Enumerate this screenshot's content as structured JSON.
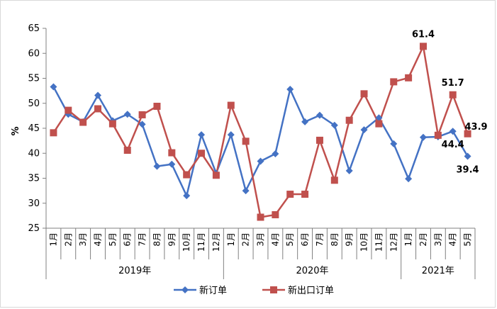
{
  "chart_data": {
    "type": "line",
    "ylabel": "%",
    "ylim": [
      25,
      65
    ],
    "yticks": [
      25,
      30,
      35,
      40,
      45,
      50,
      55,
      60,
      65
    ],
    "months": [
      "1月",
      "2月",
      "3月",
      "4月",
      "5月",
      "6月",
      "7月",
      "8月",
      "9月",
      "10月",
      "11月",
      "12月",
      "1月",
      "2月",
      "3月",
      "4月",
      "5月",
      "6月",
      "7月",
      "8月",
      "9月",
      "10月",
      "11月",
      "12月",
      "1月",
      "2月",
      "3月",
      "4月",
      "5月"
    ],
    "years": [
      {
        "label": "2019年",
        "count": 12
      },
      {
        "label": "2020年",
        "count": 12
      },
      {
        "label": "2021年",
        "count": 5
      }
    ],
    "series": [
      {
        "name": "新订单",
        "color": "#4472c4",
        "marker": "diamond",
        "values": [
          53.3,
          47.8,
          46.3,
          51.6,
          46.5,
          47.8,
          45.8,
          37.4,
          37.8,
          31.5,
          43.7,
          36.0,
          43.7,
          32.5,
          38.4,
          39.9,
          52.8,
          46.3,
          47.6,
          45.6,
          36.5,
          44.7,
          47.1,
          41.9,
          34.9,
          43.2,
          43.3,
          44.4,
          39.4
        ]
      },
      {
        "name": "新出口订单",
        "color": "#c0504d",
        "marker": "square",
        "values": [
          44.1,
          48.6,
          46.2,
          48.9,
          45.9,
          40.6,
          47.7,
          49.4,
          40.1,
          35.7,
          40.0,
          35.6,
          49.6,
          42.4,
          27.2,
          27.7,
          31.8,
          31.8,
          42.6,
          34.6,
          46.6,
          51.9,
          45.9,
          54.3,
          55.1,
          61.4,
          43.6,
          51.7,
          43.9
        ]
      }
    ],
    "annotations": [
      {
        "text": "61.4",
        "series": 1,
        "index": 25,
        "pos": "above"
      },
      {
        "text": "51.7",
        "series": 1,
        "index": 27,
        "pos": "above"
      },
      {
        "text": "43.9",
        "series": 1,
        "index": 28,
        "pos": "above-right"
      },
      {
        "text": "44.4",
        "series": 0,
        "index": 27,
        "pos": "below"
      },
      {
        "text": "39.4",
        "series": 0,
        "index": 28,
        "pos": "below"
      }
    ],
    "grid": false,
    "legend": "bottom"
  }
}
